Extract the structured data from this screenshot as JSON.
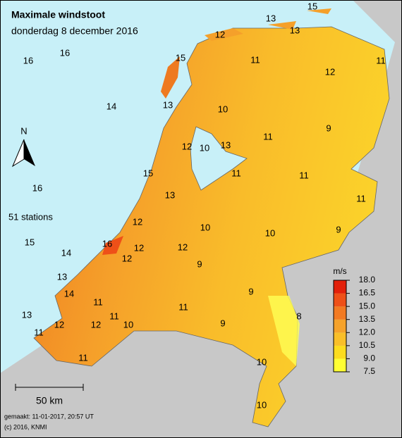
{
  "header": {
    "title": "Maximale windstoot",
    "subtitle": "donderdag 8 december 2016"
  },
  "stations": [
    15,
    13,
    12,
    13,
    16,
    16,
    15,
    11,
    11,
    12,
    14,
    13,
    10,
    9,
    11,
    12,
    10,
    13,
    15,
    11,
    11,
    16,
    13,
    11,
    12,
    10,
    10,
    9,
    15,
    16,
    12,
    12,
    14,
    12,
    9,
    13,
    14,
    11,
    9,
    11,
    8,
    13,
    11,
    12,
    12,
    10,
    9,
    11,
    11,
    10,
    10
  ],
  "station_count": "51 stations",
  "north": "N",
  "scale": "50 km",
  "legend": {
    "unit": "m/s",
    "ticks": [
      {
        "value": 7.5,
        "label": "7.5"
      },
      {
        "value": 9,
        "label": "9.0"
      },
      {
        "value": 10.5,
        "label": "10.5"
      },
      {
        "value": 12,
        "label": "12.0"
      },
      {
        "value": 13.5,
        "label": "13.5"
      },
      {
        "value": 15,
        "label": "15.0"
      },
      {
        "value": 16.5,
        "label": "16.5"
      },
      {
        "value": 18,
        "label": "18.0"
      }
    ],
    "colors": [
      "#ffff33",
      "#fcdc1e",
      "#f9bf28",
      "#f5a22a",
      "#f27a22",
      "#ee5018",
      "#e2200a"
    ]
  },
  "footer": {
    "made": "gemaakt: 11-01-2017, 20:57 UT",
    "copyright": "(c) 2016, KNMI"
  }
}
